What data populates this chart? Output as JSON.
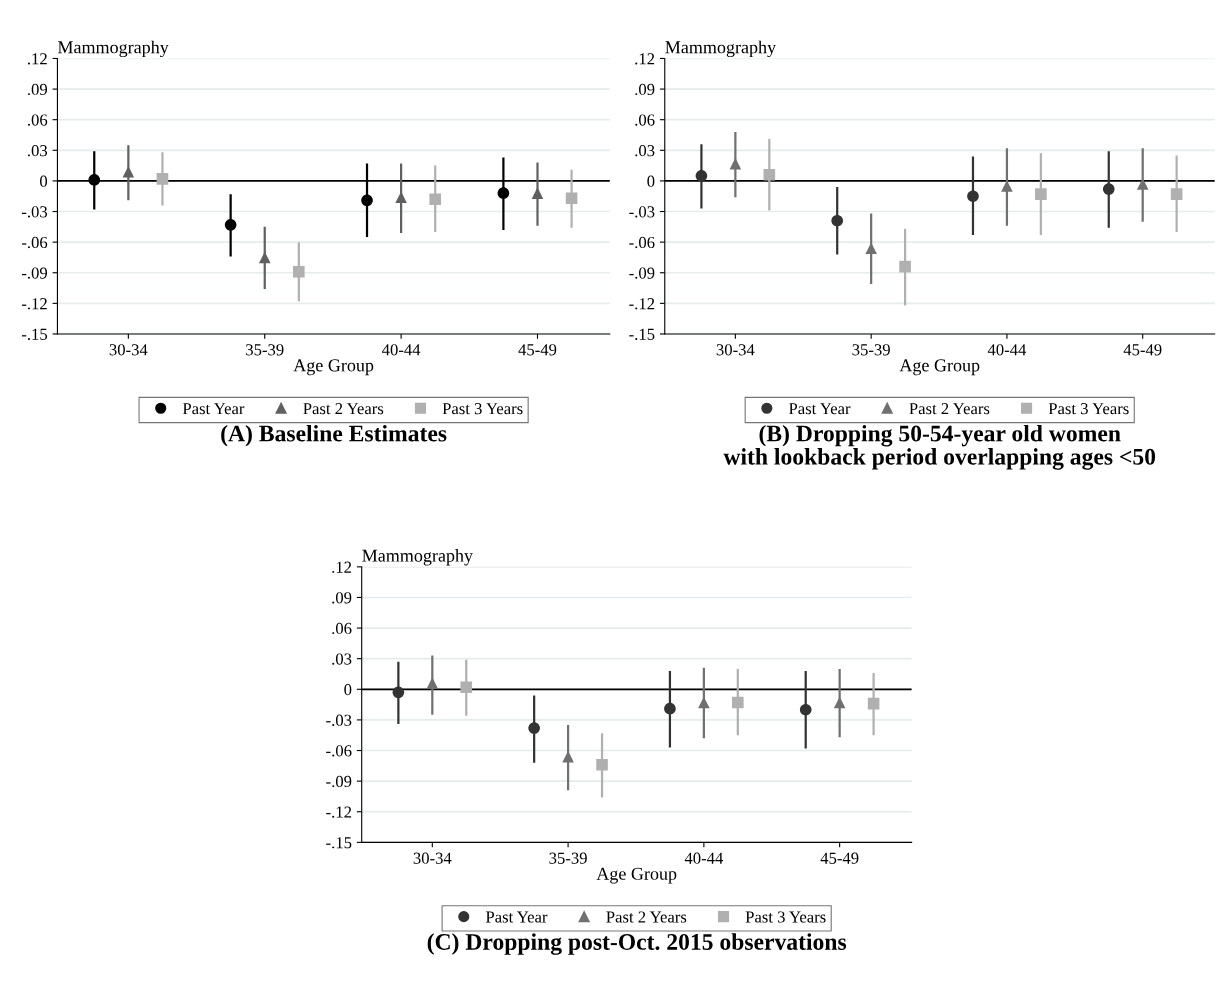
{
  "chart_data": [
    {
      "type": "scatter",
      "title": "(A) Baseline Estimates",
      "xlabel": "Age Group",
      "ylabel": "Mammography",
      "categories": [
        "30-34",
        "35-39",
        "40-44",
        "45-49"
      ],
      "series": [
        {
          "name": "Past Year",
          "color": "#000000",
          "marker": "circle",
          "values": [
            0.001,
            -0.043,
            -0.019,
            -0.012
          ],
          "errors": [
            [
              -0.028,
              0.029
            ],
            [
              -0.074,
              -0.013
            ],
            [
              -0.055,
              0.017
            ],
            [
              -0.048,
              0.023
            ]
          ]
        },
        {
          "name": "Past 2 Years",
          "color": "#606060",
          "marker": "triangle",
          "values": [
            0.009,
            -0.075,
            -0.016,
            -0.012
          ],
          "errors": [
            [
              -0.019,
              0.035
            ],
            [
              -0.106,
              -0.045
            ],
            [
              -0.051,
              0.017
            ],
            [
              -0.044,
              0.018
            ]
          ]
        },
        {
          "name": "Past 3 Years",
          "color": "#b0b0b0",
          "marker": "square",
          "values": [
            0.002,
            -0.089,
            -0.018,
            -0.017
          ],
          "errors": [
            [
              -0.024,
              0.028
            ],
            [
              -0.118,
              -0.06
            ],
            [
              -0.05,
              0.015
            ],
            [
              -0.046,
              0.011
            ]
          ]
        }
      ],
      "ylim": [
        -0.15,
        0.12
      ],
      "yticks": [
        {
          "value": -0.15,
          "label": "-.15"
        },
        {
          "value": -0.12,
          "label": "-.12"
        },
        {
          "value": -0.09,
          "label": "-.09"
        },
        {
          "value": -0.06,
          "label": "-.06"
        },
        {
          "value": -0.03,
          "label": "-.03"
        },
        0,
        {
          "value": 0.03,
          "label": ".03"
        },
        {
          "value": 0.06,
          "label": ".06"
        },
        {
          "value": 0.09,
          "label": ".09"
        },
        {
          "value": 0.12,
          "label": ".12"
        }
      ],
      "ref_lines": [
        {
          "axis": "y",
          "value": 0,
          "color": "#000000"
        }
      ],
      "grid": "y",
      "legend": "bottom"
    },
    {
      "type": "scatter",
      "title": "(B) Dropping 50-54-year old women\nwith lookback period overlapping ages <50",
      "xlabel": "Age Group",
      "ylabel": "Mammography",
      "categories": [
        "30-34",
        "35-39",
        "40-44",
        "45-49"
      ],
      "series": [
        {
          "name": "Past Year",
          "color": "#333333",
          "marker": "circle",
          "values": [
            0.005,
            -0.039,
            -0.015,
            -0.008
          ],
          "errors": [
            [
              -0.027,
              0.036
            ],
            [
              -0.072,
              -0.006
            ],
            [
              -0.053,
              0.024
            ],
            [
              -0.046,
              0.029
            ]
          ]
        },
        {
          "name": "Past 2 Years",
          "color": "#707070",
          "marker": "triangle",
          "values": [
            0.017,
            -0.066,
            -0.005,
            -0.003
          ],
          "errors": [
            [
              -0.016,
              0.048
            ],
            [
              -0.101,
              -0.032
            ],
            [
              -0.044,
              0.032
            ],
            [
              -0.04,
              0.032
            ]
          ]
        },
        {
          "name": "Past 3 Years",
          "color": "#b0b0b0",
          "marker": "square",
          "values": [
            0.006,
            -0.084,
            -0.013,
            -0.013
          ],
          "errors": [
            [
              -0.029,
              0.041
            ],
            [
              -0.122,
              -0.047
            ],
            [
              -0.053,
              0.027
            ],
            [
              -0.05,
              0.025
            ]
          ]
        }
      ],
      "ylim": [
        -0.15,
        0.12
      ],
      "yticks": [
        {
          "value": -0.15,
          "label": "-.15"
        },
        {
          "value": -0.12,
          "label": "-.12"
        },
        {
          "value": -0.09,
          "label": "-.09"
        },
        {
          "value": -0.06,
          "label": "-.06"
        },
        {
          "value": -0.03,
          "label": "-.03"
        },
        0,
        {
          "value": 0.03,
          "label": ".03"
        },
        {
          "value": 0.06,
          "label": ".06"
        },
        {
          "value": 0.09,
          "label": ".09"
        },
        {
          "value": 0.12,
          "label": ".12"
        }
      ],
      "ref_lines": [
        {
          "axis": "y",
          "value": 0,
          "color": "#000000"
        }
      ],
      "grid": "y",
      "legend": "bottom"
    },
    {
      "type": "scatter",
      "title": "(C) Dropping post-Oct. 2015 observations",
      "xlabel": "Age Group",
      "ylabel": "Mammography",
      "categories": [
        "30-34",
        "35-39",
        "40-44",
        "45-49"
      ],
      "series": [
        {
          "name": "Past Year",
          "color": "#333333",
          "marker": "circle",
          "values": [
            -0.003,
            -0.038,
            -0.019,
            -0.02
          ],
          "errors": [
            [
              -0.034,
              0.027
            ],
            [
              -0.072,
              -0.006
            ],
            [
              -0.057,
              0.018
            ],
            [
              -0.058,
              0.018
            ]
          ]
        },
        {
          "name": "Past 2 Years",
          "color": "#707070",
          "marker": "triangle",
          "values": [
            0.006,
            -0.066,
            -0.013,
            -0.013
          ],
          "errors": [
            [
              -0.025,
              0.033
            ],
            [
              -0.099,
              -0.035
            ],
            [
              -0.048,
              0.021
            ],
            [
              -0.047,
              0.02
            ]
          ]
        },
        {
          "name": "Past 3 Years",
          "color": "#b0b0b0",
          "marker": "square",
          "values": [
            0.002,
            -0.074,
            -0.013,
            -0.014
          ],
          "errors": [
            [
              -0.026,
              0.029
            ],
            [
              -0.106,
              -0.043
            ],
            [
              -0.045,
              0.02
            ],
            [
              -0.045,
              0.016
            ]
          ]
        }
      ],
      "ylim": [
        -0.15,
        0.12
      ],
      "yticks": [
        {
          "value": -0.15,
          "label": "-.15"
        },
        {
          "value": -0.12,
          "label": "-.12"
        },
        {
          "value": -0.09,
          "label": "-.09"
        },
        {
          "value": -0.06,
          "label": "-.06"
        },
        {
          "value": -0.03,
          "label": "-.03"
        },
        0,
        {
          "value": 0.03,
          "label": ".03"
        },
        {
          "value": 0.06,
          "label": ".06"
        },
        {
          "value": 0.09,
          "label": ".09"
        },
        {
          "value": 0.12,
          "label": ".12"
        }
      ],
      "ref_lines": [
        {
          "axis": "y",
          "value": 0,
          "color": "#000000"
        }
      ],
      "grid": "y",
      "legend": "bottom"
    }
  ]
}
